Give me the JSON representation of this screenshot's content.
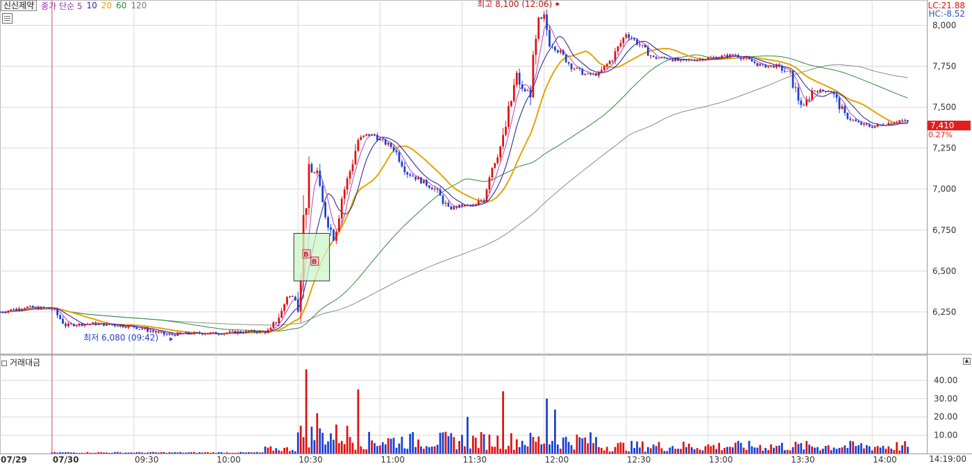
{
  "header": {
    "stock_name": "신신제약",
    "ma_prefix": "종가 단순 5",
    "ma_10": "10",
    "ma_20": "20",
    "ma_60": "60",
    "ma_120": "120"
  },
  "right_labels": {
    "lc": "LC:21.88",
    "hc": "HC:-8.52",
    "current_price": "7,410",
    "current_pct": "0.27%"
  },
  "volume_panel": {
    "title": "거래대금"
  },
  "clock": "14:19:00",
  "annotations": {
    "high": "최고 8,100 (12:06)",
    "low": "최저 6,080 (09:42)",
    "signal_b": "B"
  },
  "colors": {
    "up": "#e01010",
    "down": "#1a3fd0",
    "ma5": "#b040c8",
    "ma10": "#1a1a8a",
    "ma20": "#e6a300",
    "ma60": "#2a8a3a",
    "ma120": "#8a8a8a",
    "grid": "#d8d8d8"
  },
  "chart_data": {
    "type": "candlestick",
    "price_axis": {
      "ticks": [
        "8,000",
        "7,750",
        "7,500",
        "7,250",
        "7,000",
        "6,750",
        "6,500",
        "6,250"
      ],
      "values": [
        8000,
        7750,
        7500,
        7250,
        7000,
        6750,
        6500,
        6250
      ],
      "ylim": [
        6000,
        8150
      ]
    },
    "volume_axis": {
      "ticks": [
        "40.00",
        "30.00",
        "20.00",
        "10.00"
      ],
      "values": [
        40,
        30,
        20,
        10
      ],
      "ylim": [
        0,
        50
      ]
    },
    "time_axis": {
      "labels": [
        "07/29",
        "07/30",
        "09:30",
        "10:00",
        "10:30",
        "11:00",
        "11:30",
        "12:00",
        "12:30",
        "13:00",
        "13:30",
        "14:00"
      ],
      "minutes": [
        -30,
        0,
        30,
        60,
        90,
        120,
        150,
        180,
        210,
        240,
        270,
        300
      ],
      "range_minutes": [
        -19,
        320
      ]
    },
    "price_path": {
      "minutes": [
        -19,
        -10,
        0,
        5,
        15,
        30,
        42,
        50,
        60,
        70,
        78,
        80,
        84,
        86,
        90,
        92,
        94,
        97,
        98,
        100,
        103,
        106,
        108,
        112,
        115,
        118,
        120,
        125,
        130,
        135,
        140,
        145,
        150,
        155,
        158,
        160,
        165,
        170,
        172,
        175,
        178,
        180,
        182,
        185,
        190,
        195,
        200,
        205,
        210,
        215,
        220,
        225,
        230,
        240,
        250,
        260,
        265,
        270,
        273,
        275,
        278,
        285,
        290,
        295,
        300,
        305,
        310,
        313
      ],
      "prices": [
        6250,
        6280,
        6270,
        6170,
        6180,
        6160,
        6110,
        6120,
        6120,
        6130,
        6130,
        6140,
        6250,
        6350,
        6330,
        6800,
        7100,
        7100,
        6960,
        6850,
        6700,
        6950,
        7050,
        7300,
        7330,
        7330,
        7300,
        7250,
        7100,
        7050,
        7000,
        6880,
        6900,
        6900,
        6950,
        7100,
        7300,
        7700,
        7600,
        7600,
        8000,
        8050,
        7900,
        7850,
        7750,
        7700,
        7700,
        7800,
        7950,
        7880,
        7800,
        7800,
        7780,
        7800,
        7820,
        7750,
        7750,
        7700,
        7550,
        7500,
        7600,
        7600,
        7450,
        7400,
        7380,
        7400,
        7420,
        7410
      ],
      "volume_spikes": {
        "10:33": 46,
        "10:37": 22,
        "10:52": 35,
        "11:32": 20,
        "11:45": 34,
        "12:01": 30,
        "12:04": 24
      }
    },
    "series": [
      {
        "name": "5",
        "type": "line"
      },
      {
        "name": "10",
        "type": "line"
      },
      {
        "name": "20",
        "type": "line"
      },
      {
        "name": "60",
        "type": "line"
      },
      {
        "name": "120",
        "type": "line"
      },
      {
        "name": "거래대금",
        "type": "bar"
      }
    ],
    "annotations": [
      {
        "text": "최고 8,100 (12:06)",
        "minute": 186,
        "value": 8100
      },
      {
        "text": "최저 6,080 (09:42)",
        "minute": 42,
        "value": 6080
      }
    ],
    "grid": true,
    "signal_box": {
      "minute_range": [
        90,
        100
      ],
      "value_range": [
        6440,
        6730
      ]
    }
  }
}
